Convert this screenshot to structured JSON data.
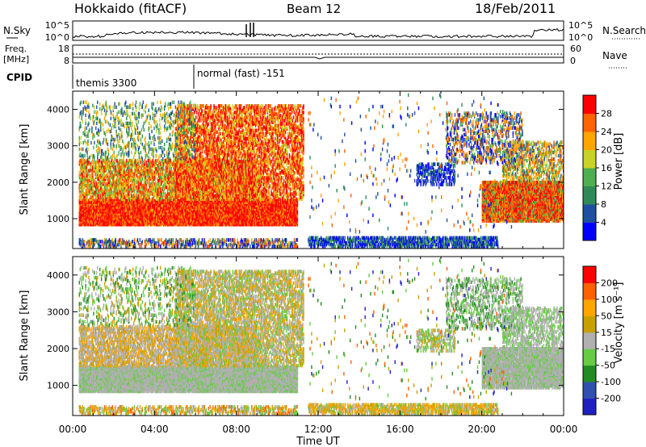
{
  "header": {
    "station": "Hokkaido (fitACF)",
    "beam": "Beam 12",
    "date": "18/Feb/2011"
  },
  "top_panels": {
    "nsky": {
      "label": "N.Sky",
      "ticks_left": [
        "10^5",
        "10^0"
      ]
    },
    "nsearch": {
      "label": "N.Search",
      "ticks_right": [
        "10^5",
        "10^0"
      ]
    },
    "freq": {
      "label_line1": "Freq.",
      "label_line2": "[MHz]",
      "ticks": [
        "18",
        "8"
      ]
    },
    "nave": {
      "label": "Nave",
      "ticks": [
        "60",
        "0"
      ]
    },
    "cpid": {
      "label": "CPID",
      "segments": [
        "themis 3300",
        "normal (fast) -151"
      ]
    }
  },
  "colors": {
    "power_scale": [
      "#0000ff",
      "#1f4fa0",
      "#2e8b57",
      "#4caf50",
      "#c8d228",
      "#ffa500",
      "#ff6400",
      "#ff0000"
    ],
    "velocity_scale": [
      "#2020c0",
      "#3050b0",
      "#228b22",
      "#66cc44",
      "#b0b0b0",
      "#c8a000",
      "#ffa500",
      "#ff6000",
      "#ff0000"
    ]
  },
  "chart_data": [
    {
      "type": "heatmap",
      "name": "power",
      "xlabel": "",
      "ylabel": "Slant Range [km]",
      "x_range_hours": [
        0,
        24
      ],
      "ylim": [
        180,
        4500
      ],
      "yticks": [
        "1000",
        "2000",
        "3000",
        "4000"
      ],
      "colorbar": {
        "label": "Power [dB]",
        "ticks": [
          "28",
          "24",
          "20",
          "16",
          "12",
          "8",
          "4"
        ]
      }
    },
    {
      "type": "heatmap",
      "name": "velocity",
      "xlabel": "Time UT",
      "ylabel": "Slant Range [km]",
      "x_range_hours": [
        0,
        24
      ],
      "ylim": [
        180,
        4500
      ],
      "yticks": [
        "1000",
        "2000",
        "3000",
        "4000"
      ],
      "xticks": [
        "00:00",
        "04:00",
        "08:00",
        "12:00",
        "16:00",
        "20:00",
        "00:00"
      ],
      "colorbar": {
        "label": "Velocity [m s⁻¹]",
        "ticks": [
          "200",
          "100",
          "50",
          "15",
          "-15",
          "-50",
          "-100",
          "-200"
        ]
      }
    }
  ]
}
